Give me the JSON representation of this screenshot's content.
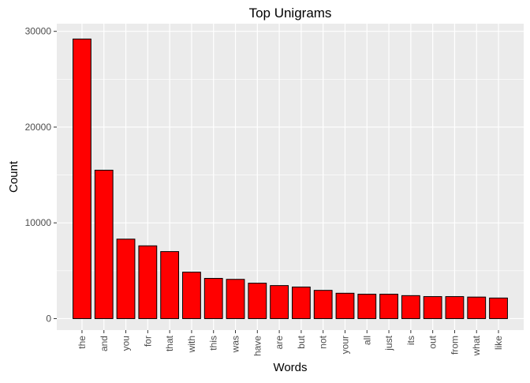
{
  "chart_data": {
    "type": "bar",
    "title": "Top Unigrams",
    "xlabel": "Words",
    "ylabel": "Count",
    "categories": [
      "the",
      "and",
      "you",
      "for",
      "that",
      "with",
      "this",
      "was",
      "have",
      "are",
      "but",
      "not",
      "your",
      "all",
      "just",
      "its",
      "out",
      "from",
      "what",
      "like"
    ],
    "values": [
      29200,
      15500,
      8300,
      7600,
      7000,
      4850,
      4200,
      4100,
      3700,
      3450,
      3300,
      2950,
      2650,
      2550,
      2550,
      2400,
      2300,
      2300,
      2250,
      2150
    ],
    "ylim": [
      -1200,
      30800
    ],
    "yticks": [
      0,
      10000,
      20000,
      30000
    ],
    "ytick_labels": [
      "0",
      "10000",
      "20000",
      "30000"
    ],
    "grid": true,
    "legend": "none",
    "colors": {
      "bar_fill": "#ff0000",
      "bar_stroke": "#000000",
      "panel_bg": "#ebebeb",
      "grid": "#ffffff"
    }
  }
}
